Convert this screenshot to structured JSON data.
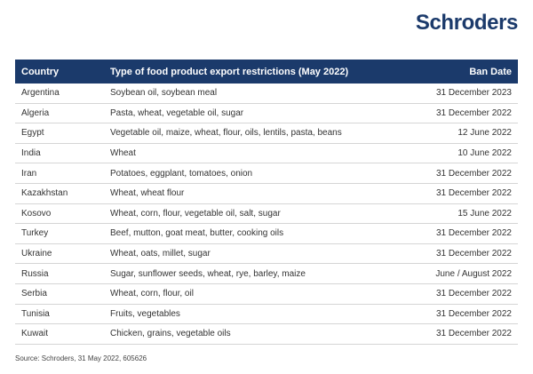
{
  "brand": {
    "logo_text": "Schroders",
    "color": "#1b3a6b"
  },
  "table": {
    "headers": [
      "Country",
      "Type of food product export restrictions (May 2022)",
      "Ban Date"
    ],
    "rows": [
      [
        "Argentina",
        "Soybean oil, soybean meal",
        "31 December 2023"
      ],
      [
        "Algeria",
        "Pasta, wheat, vegetable oil, sugar",
        "31 December 2022"
      ],
      [
        "Egypt",
        "Vegetable oil, maize, wheat, flour, oils, lentils, pasta, beans",
        "12 June 2022"
      ],
      [
        "India",
        "Wheat",
        "10 June 2022"
      ],
      [
        "Iran",
        "Potatoes, eggplant, tomatoes, onion",
        "31 December 2022"
      ],
      [
        "Kazakhstan",
        "Wheat, wheat flour",
        "31 December 2022"
      ],
      [
        "Kosovo",
        "Wheat, corn, flour, vegetable oil, salt, sugar",
        "15 June 2022"
      ],
      [
        "Turkey",
        "Beef, mutton, goat meat, butter, cooking oils",
        "31 December 2022"
      ],
      [
        "Ukraine",
        "Wheat, oats, millet, sugar",
        "31 December 2022"
      ],
      [
        "Russia",
        "Sugar, sunflower seeds, wheat, rye, barley, maize",
        "June / August 2022"
      ],
      [
        "Serbia",
        "Wheat, corn, flour, oil",
        "31 December 2022"
      ],
      [
        "Tunisia",
        "Fruits, vegetables",
        "31 December 2022"
      ],
      [
        "Kuwait",
        "Chicken, grains, vegetable oils",
        "31 December 2022"
      ]
    ]
  },
  "source": "Source: Schroders, 31 May 2022, 605626"
}
